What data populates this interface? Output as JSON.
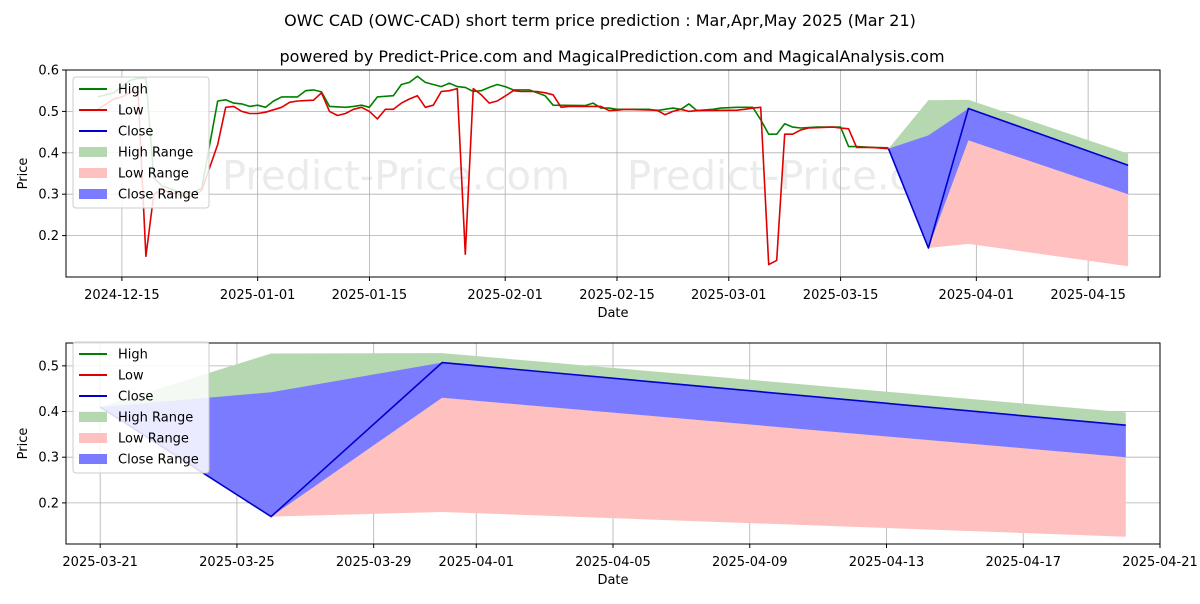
{
  "title": "OWC CAD (OWC-CAD) short term price prediction : Mar,Apr,May 2025 (Mar 21)",
  "subtitle": "powered by Predict-Price.com and MagicalPrediction.com and MagicalAnalysis.com",
  "watermark": "Predict-Price.com",
  "colors": {
    "high": "#008000",
    "low": "#e00000",
    "close": "#0000cc",
    "high_range": "#b5d8b0",
    "low_range": "#ffc0c0",
    "close_range": "#7b7bff",
    "grid": "#b0b0b0",
    "axis": "#000000"
  },
  "legend": [
    "High",
    "Low",
    "Close",
    "High Range",
    "Low Range",
    "Close Range"
  ],
  "chart_data": [
    {
      "type": "line",
      "xlabel": "Date",
      "ylabel": "Price",
      "xlim": [
        "2024-12-08",
        "2025-04-24"
      ],
      "ylim": [
        0.1,
        0.6
      ],
      "xticks": [
        "2024-12-15",
        "2025-01-01",
        "2025-01-15",
        "2025-02-01",
        "2025-02-15",
        "2025-03-01",
        "2025-03-15",
        "2025-04-01",
        "2025-04-15"
      ],
      "yticks": [
        "0.2",
        "0.3",
        "0.4",
        "0.5",
        "0.6"
      ],
      "grid": true,
      "legend_position": "upper-left",
      "series": [
        {
          "name": "High",
          "points": [
            [
              "2024-12-12",
              0.535
            ],
            [
              "2024-12-14",
              0.545
            ],
            [
              "2024-12-16",
              0.575
            ],
            [
              "2024-12-17",
              0.58
            ],
            [
              "2024-12-18",
              0.58
            ],
            [
              "2024-12-19",
              0.34
            ],
            [
              "2024-12-20",
              0.32
            ],
            [
              "2024-12-23",
              0.3
            ],
            [
              "2024-12-24",
              0.305
            ],
            [
              "2024-12-25",
              0.315
            ],
            [
              "2024-12-26",
              0.42
            ],
            [
              "2024-12-27",
              0.525
            ],
            [
              "2024-12-28",
              0.528
            ],
            [
              "2024-12-29",
              0.52
            ],
            [
              "2024-12-30",
              0.518
            ],
            [
              "2024-12-31",
              0.512
            ],
            [
              "2025-01-01",
              0.515
            ],
            [
              "2025-01-02",
              0.51
            ],
            [
              "2025-01-03",
              0.525
            ],
            [
              "2025-01-04",
              0.535
            ],
            [
              "2025-01-06",
              0.535
            ],
            [
              "2025-01-07",
              0.55
            ],
            [
              "2025-01-08",
              0.552
            ],
            [
              "2025-01-09",
              0.547
            ],
            [
              "2025-01-10",
              0.512
            ],
            [
              "2025-01-12",
              0.51
            ],
            [
              "2025-01-13",
              0.512
            ],
            [
              "2025-01-14",
              0.515
            ],
            [
              "2025-01-15",
              0.51
            ],
            [
              "2025-01-16",
              0.535
            ],
            [
              "2025-01-18",
              0.538
            ],
            [
              "2025-01-19",
              0.565
            ],
            [
              "2025-01-20",
              0.57
            ],
            [
              "2025-01-21",
              0.585
            ],
            [
              "2025-01-22",
              0.57
            ],
            [
              "2025-01-23",
              0.565
            ],
            [
              "2025-01-24",
              0.56
            ],
            [
              "2025-01-25",
              0.568
            ],
            [
              "2025-01-26",
              0.56
            ],
            [
              "2025-01-27",
              0.558
            ],
            [
              "2025-01-28",
              0.548
            ],
            [
              "2025-01-29",
              0.55
            ],
            [
              "2025-01-30",
              0.558
            ],
            [
              "2025-01-31",
              0.565
            ],
            [
              "2025-02-01",
              0.56
            ],
            [
              "2025-02-02",
              0.552
            ],
            [
              "2025-02-04",
              0.552
            ],
            [
              "2025-02-05",
              0.545
            ],
            [
              "2025-02-06",
              0.538
            ],
            [
              "2025-02-07",
              0.515
            ],
            [
              "2025-02-11",
              0.514
            ],
            [
              "2025-02-12",
              0.52
            ],
            [
              "2025-02-13",
              0.508
            ],
            [
              "2025-02-14",
              0.508
            ],
            [
              "2025-02-15",
              0.505
            ],
            [
              "2025-02-19",
              0.505
            ],
            [
              "2025-02-20",
              0.502
            ],
            [
              "2025-02-21",
              0.505
            ],
            [
              "2025-02-22",
              0.508
            ],
            [
              "2025-02-23",
              0.505
            ],
            [
              "2025-02-24",
              0.518
            ],
            [
              "2025-02-25",
              0.502
            ],
            [
              "2025-02-27",
              0.505
            ],
            [
              "2025-02-28",
              0.508
            ],
            [
              "2025-03-02",
              0.51
            ],
            [
              "2025-03-04",
              0.51
            ],
            [
              "2025-03-05",
              0.48
            ],
            [
              "2025-03-06",
              0.445
            ],
            [
              "2025-03-07",
              0.445
            ],
            [
              "2025-03-08",
              0.47
            ],
            [
              "2025-03-09",
              0.462
            ],
            [
              "2025-03-10",
              0.46
            ],
            [
              "2025-03-12",
              0.462
            ],
            [
              "2025-03-15",
              0.462
            ],
            [
              "2025-03-16",
              0.415
            ],
            [
              "2025-03-17",
              0.415
            ],
            [
              "2025-03-19",
              0.413
            ],
            [
              "2025-03-21",
              0.412
            ]
          ]
        },
        {
          "name": "Low",
          "points": [
            [
              "2024-12-12",
              0.505
            ],
            [
              "2024-12-14",
              0.53
            ],
            [
              "2024-12-15",
              0.535
            ],
            [
              "2024-12-17",
              0.555
            ],
            [
              "2024-12-18",
              0.15
            ],
            [
              "2024-12-19",
              0.3
            ],
            [
              "2024-12-20",
              0.31
            ],
            [
              "2024-12-23",
              0.295
            ],
            [
              "2024-12-24",
              0.295
            ],
            [
              "2024-12-25",
              0.31
            ],
            [
              "2024-12-27",
              0.42
            ],
            [
              "2024-12-28",
              0.51
            ],
            [
              "2024-12-29",
              0.512
            ],
            [
              "2024-12-30",
              0.5
            ],
            [
              "2024-12-31",
              0.495
            ],
            [
              "2025-01-01",
              0.495
            ],
            [
              "2025-01-02",
              0.498
            ],
            [
              "2025-01-04",
              0.51
            ],
            [
              "2025-01-05",
              0.522
            ],
            [
              "2025-01-06",
              0.525
            ],
            [
              "2025-01-07",
              0.526
            ],
            [
              "2025-01-08",
              0.527
            ],
            [
              "2025-01-09",
              0.545
            ],
            [
              "2025-01-10",
              0.5
            ],
            [
              "2025-01-11",
              0.49
            ],
            [
              "2025-01-12",
              0.495
            ],
            [
              "2025-01-13",
              0.505
            ],
            [
              "2025-01-14",
              0.51
            ],
            [
              "2025-01-15",
              0.5
            ],
            [
              "2025-01-16",
              0.482
            ],
            [
              "2025-01-17",
              0.505
            ],
            [
              "2025-01-18",
              0.505
            ],
            [
              "2025-01-19",
              0.52
            ],
            [
              "2025-01-20",
              0.53
            ],
            [
              "2025-01-21",
              0.538
            ],
            [
              "2025-01-22",
              0.51
            ],
            [
              "2025-01-23",
              0.515
            ],
            [
              "2025-01-24",
              0.548
            ],
            [
              "2025-01-25",
              0.55
            ],
            [
              "2025-01-26",
              0.555
            ],
            [
              "2025-01-27",
              0.155
            ],
            [
              "2025-01-28",
              0.555
            ],
            [
              "2025-01-29",
              0.54
            ],
            [
              "2025-01-30",
              0.52
            ],
            [
              "2025-01-31",
              0.525
            ],
            [
              "2025-02-01",
              0.537
            ],
            [
              "2025-02-02",
              0.55
            ],
            [
              "2025-02-03",
              0.548
            ],
            [
              "2025-02-05",
              0.548
            ],
            [
              "2025-02-06",
              0.545
            ],
            [
              "2025-02-07",
              0.54
            ],
            [
              "2025-02-08",
              0.51
            ],
            [
              "2025-02-09",
              0.512
            ],
            [
              "2025-02-13",
              0.512
            ],
            [
              "2025-02-14",
              0.502
            ],
            [
              "2025-02-15",
              0.503
            ],
            [
              "2025-02-16",
              0.505
            ],
            [
              "2025-02-20",
              0.503
            ],
            [
              "2025-02-21",
              0.492
            ],
            [
              "2025-02-22",
              0.5
            ],
            [
              "2025-02-23",
              0.505
            ],
            [
              "2025-02-24",
              0.5
            ],
            [
              "2025-02-25",
              0.502
            ],
            [
              "2025-03-02",
              0.503
            ],
            [
              "2025-03-03",
              0.505
            ],
            [
              "2025-03-04",
              0.508
            ],
            [
              "2025-03-05",
              0.51
            ],
            [
              "2025-03-06",
              0.13
            ],
            [
              "2025-03-07",
              0.14
            ],
            [
              "2025-03-08",
              0.445
            ],
            [
              "2025-03-09",
              0.445
            ],
            [
              "2025-03-10",
              0.455
            ],
            [
              "2025-03-11",
              0.46
            ],
            [
              "2025-03-14",
              0.462
            ],
            [
              "2025-03-15",
              0.46
            ],
            [
              "2025-03-16",
              0.458
            ],
            [
              "2025-03-17",
              0.413
            ],
            [
              "2025-03-19",
              0.413
            ],
            [
              "2025-03-21",
              0.41
            ]
          ]
        },
        {
          "name": "Close",
          "points": [
            [
              "2025-03-21",
              0.41
            ],
            [
              "2025-03-26",
              0.17
            ],
            [
              "2025-03-31",
              0.507
            ],
            [
              "2025-04-20",
              0.37
            ]
          ]
        }
      ],
      "bands": [
        {
          "name": "High Range",
          "x": [
            "2025-03-21",
            "2025-03-26",
            "2025-03-31",
            "2025-04-20"
          ],
          "upper": [
            0.41,
            0.527,
            0.528,
            0.398
          ],
          "lower": [
            0.41,
            0.17,
            0.43,
            0.3
          ]
        },
        {
          "name": "Low Range",
          "x": [
            "2025-03-26",
            "2025-03-31",
            "2025-04-20"
          ],
          "upper": [
            0.17,
            0.43,
            0.3
          ],
          "lower": [
            0.17,
            0.18,
            0.126
          ]
        },
        {
          "name": "Close Range",
          "x": [
            "2025-03-21",
            "2025-03-26",
            "2025-03-31",
            "2025-04-20"
          ],
          "upper": [
            0.41,
            0.442,
            0.507,
            0.37
          ],
          "lower": [
            0.41,
            0.17,
            0.43,
            0.3
          ]
        }
      ]
    },
    {
      "type": "line",
      "xlabel": "Date",
      "ylabel": "Price",
      "xlim": [
        "2025-03-20",
        "2025-04-21"
      ],
      "ylim": [
        0.11,
        0.55
      ],
      "xticks": [
        "2025-03-21",
        "2025-03-25",
        "2025-03-29",
        "2025-04-01",
        "2025-04-05",
        "2025-04-09",
        "2025-04-13",
        "2025-04-17",
        "2025-04-21"
      ],
      "yticks": [
        "0.2",
        "0.3",
        "0.4",
        "0.5"
      ],
      "grid": true,
      "legend_position": "upper-left",
      "series": [
        {
          "name": "Close",
          "points": [
            [
              "2025-03-21",
              0.41
            ],
            [
              "2025-03-26",
              0.17
            ],
            [
              "2025-03-31",
              0.507
            ],
            [
              "2025-04-20",
              0.37
            ]
          ]
        }
      ],
      "bands": [
        {
          "name": "High Range",
          "x": [
            "2025-03-21",
            "2025-03-26",
            "2025-03-31",
            "2025-04-20"
          ],
          "upper": [
            0.41,
            0.527,
            0.528,
            0.398
          ],
          "lower": [
            0.41,
            0.17,
            0.43,
            0.3
          ]
        },
        {
          "name": "Low Range",
          "x": [
            "2025-03-26",
            "2025-03-31",
            "2025-04-20"
          ],
          "upper": [
            0.17,
            0.43,
            0.3
          ],
          "lower": [
            0.17,
            0.18,
            0.126
          ]
        },
        {
          "name": "Close Range",
          "x": [
            "2025-03-21",
            "2025-03-26",
            "2025-03-31",
            "2025-04-20"
          ],
          "upper": [
            0.41,
            0.442,
            0.507,
            0.37
          ],
          "lower": [
            0.41,
            0.17,
            0.43,
            0.3
          ]
        }
      ]
    }
  ]
}
